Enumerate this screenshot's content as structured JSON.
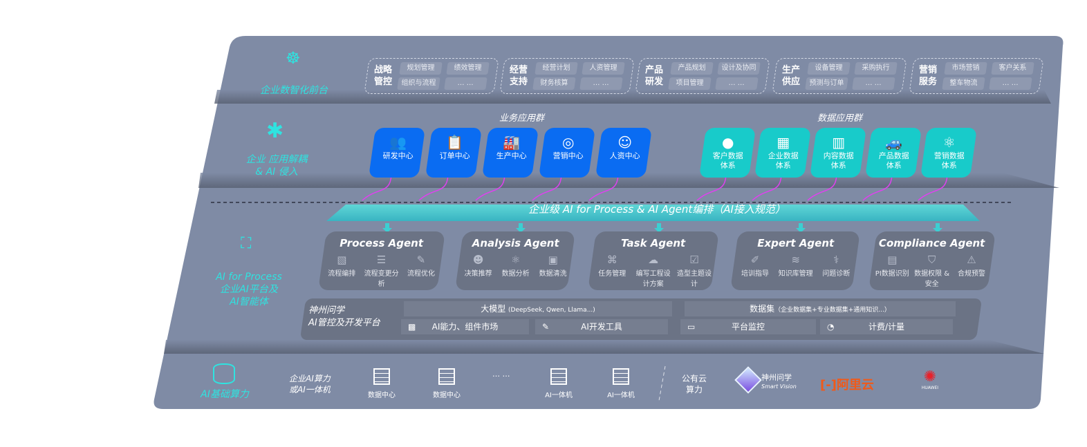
{
  "colors": {
    "panel": "#7f8ba5",
    "cyan": "#2fe3e0",
    "blue_tile": "#0a6cf2",
    "teal_tile": "#18cbca",
    "connector": "#e040f0"
  },
  "layer1": {
    "label": "企业数智化前台",
    "icon": "brain-icon",
    "groups": [
      {
        "title": "战略管控",
        "items": [
          "规划管理",
          "绩效管理",
          "组织与流程",
          "… …"
        ]
      },
      {
        "title": "经营支持",
        "items": [
          "经营计划",
          "人资管理",
          "财务核算",
          "… …"
        ]
      },
      {
        "title": "产品研发",
        "items": [
          "产品规划",
          "设计及协同",
          "项目管理",
          "… …"
        ]
      },
      {
        "title": "生产供应",
        "items": [
          "设备管理",
          "采购执行",
          "预测与订单",
          "… …"
        ]
      },
      {
        "title": "营销服务",
        "items": [
          "市场营销",
          "客户关系",
          "整车物流",
          "… …"
        ]
      }
    ]
  },
  "layer2": {
    "label_line1": "企业 应用解耦",
    "label_line2": "& AI 侵入",
    "icon": "molecule-icon",
    "business_header": "业务应用群",
    "data_header": "数据应用群",
    "business": [
      {
        "label": "研发中心",
        "icon": "team-icon"
      },
      {
        "label": "订单中心",
        "icon": "clipboard-icon"
      },
      {
        "label": "生产中心",
        "icon": "factory-icon"
      },
      {
        "label": "营销中心",
        "icon": "target-icon"
      },
      {
        "label": "人资中心",
        "icon": "people-icon"
      }
    ],
    "data": [
      {
        "l1": "客户数据",
        "l2": "体系",
        "icon": "user-icon"
      },
      {
        "l1": "企业数据",
        "l2": "体系",
        "icon": "building-icon"
      },
      {
        "l1": "内容数据",
        "l2": "体系",
        "icon": "books-icon"
      },
      {
        "l1": "产品数据",
        "l2": "体系",
        "icon": "car-icon"
      },
      {
        "l1": "营销数据",
        "l2": "体系",
        "icon": "atom-icon"
      }
    ]
  },
  "band_title": "企业级 AI for Process & AI Agent编排（AI接入规范）",
  "layer3": {
    "label_line1": "AI for Process",
    "label_line2": "企业AI平台及",
    "label_line3": "AI智能体",
    "icon": "face-scan-icon",
    "agents": [
      {
        "title": "Process Agent",
        "items": [
          {
            "label": "流程编排",
            "icon": "chart-window-icon"
          },
          {
            "label": "流程变更分析",
            "icon": "list-icon"
          },
          {
            "label": "流程优化",
            "icon": "tools-icon"
          }
        ]
      },
      {
        "title": "Analysis Agent",
        "items": [
          {
            "label": "决策推荐",
            "icon": "head-icon"
          },
          {
            "label": "数据分析",
            "icon": "atom-icon"
          },
          {
            "label": "数据清洗",
            "icon": "clean-icon"
          }
        ]
      },
      {
        "title": "Task Agent",
        "items": [
          {
            "label": "任务管理",
            "icon": "network-icon"
          },
          {
            "label": "编写工程设计方案",
            "icon": "cloud-icon"
          },
          {
            "label": "造型主题设计",
            "icon": "checklist-icon"
          }
        ]
      },
      {
        "title": "Expert Agent",
        "items": [
          {
            "label": "培训指导",
            "icon": "pencil-icon"
          },
          {
            "label": "知识库管理",
            "icon": "layers-icon"
          },
          {
            "label": "问题诊断",
            "icon": "diagnose-icon"
          }
        ]
      },
      {
        "title": "Compliance Agent",
        "items": [
          {
            "label": "PI数据识别",
            "icon": "id-card-icon"
          },
          {
            "label": "数据权限 & 安全",
            "icon": "shield-icon"
          },
          {
            "label": "合规预警",
            "icon": "alert-icon"
          }
        ]
      }
    ],
    "platform": {
      "name_line1": "神州问学",
      "name_line2": "AI管控及开发平台",
      "model": "大模型",
      "model_note": "(DeepSeek, Qwen, Llama...)",
      "dataset": "数据集",
      "dataset_note": "（企业数据集+专业数据集+通用知识...）",
      "tools": [
        {
          "label": "AI能力、组件市场",
          "icon": "market-icon"
        },
        {
          "label": "AI开发工具",
          "icon": "dev-tool-icon"
        },
        {
          "label": "平台监控",
          "icon": "monitor-icon"
        },
        {
          "label": "计费/计量",
          "icon": "gauge-icon"
        }
      ]
    }
  },
  "layer4": {
    "label": "AI基础算力",
    "icon": "database-icon",
    "private_line1": "企业AI算力",
    "private_line2": "或AI一体机",
    "servers": [
      "数据中心",
      "数据中心",
      "AI一体机",
      "AI一体机"
    ],
    "ellipsis": "… …",
    "public_line1": "公有云",
    "public_line2": "算力",
    "logos": {
      "shenzhou": "神州问学",
      "shenzhou_sub": "Smart Vision",
      "aliyun": "阿里云",
      "huawei": "HUAWEI"
    }
  }
}
